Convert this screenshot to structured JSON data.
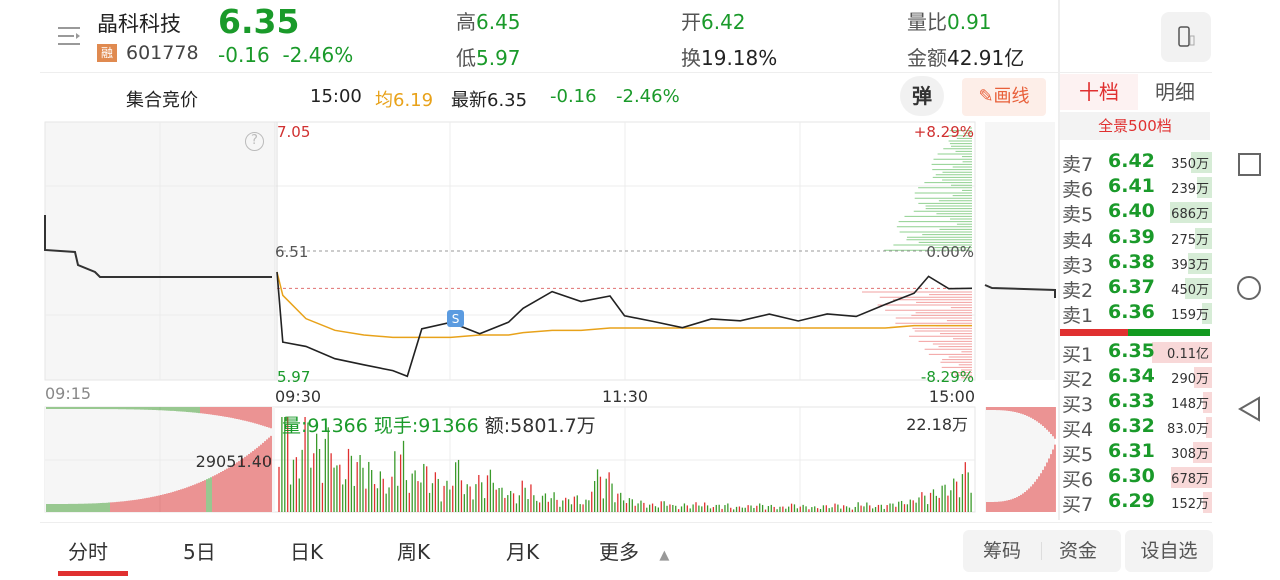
{
  "header": {
    "name": "晶科科技",
    "price": "6.35",
    "rong": "融",
    "code": "601778",
    "change": "-0.16",
    "change_pct": "-2.46%",
    "high_label": "高",
    "high": "6.45",
    "low_label": "低",
    "low": "5.97",
    "open_label": "开",
    "open": "6.42",
    "turnover_label": "换",
    "turnover": "19.18%",
    "vol_ratio_label": "量比",
    "vol_ratio": "0.91",
    "amount_label": "金额",
    "amount": "42.91亿"
  },
  "subbar": {
    "auction": "集合竞价",
    "time": "15:00",
    "avg": "均6.19",
    "latest": "最新6.35",
    "change": "-0.16",
    "change_pct": "-2.46%",
    "danmu": "弹",
    "draw": "画线"
  },
  "orderbook": {
    "tabs": [
      "十档",
      "明细"
    ],
    "panorama": "全景500档",
    "sell": [
      {
        "label": "卖7",
        "price": "6.42",
        "vol": "350万",
        "w": 0.35
      },
      {
        "label": "卖6",
        "price": "6.41",
        "vol": "239万",
        "w": 0.25
      },
      {
        "label": "卖5",
        "price": "6.40",
        "vol": "686万",
        "w": 0.7
      },
      {
        "label": "卖4",
        "price": "6.39",
        "vol": "275万",
        "w": 0.28
      },
      {
        "label": "卖3",
        "price": "6.38",
        "vol": "393万",
        "w": 0.4
      },
      {
        "label": "卖2",
        "price": "6.37",
        "vol": "450万",
        "w": 0.45
      },
      {
        "label": "卖1",
        "price": "6.36",
        "vol": "159万",
        "w": 0.16
      }
    ],
    "buy": [
      {
        "label": "买1",
        "price": "6.35",
        "vol": "0.11亿",
        "w": 1.0
      },
      {
        "label": "买2",
        "price": "6.34",
        "vol": "290万",
        "w": 0.3
      },
      {
        "label": "买3",
        "price": "6.33",
        "vol": "148万",
        "w": 0.15
      },
      {
        "label": "买4",
        "price": "6.32",
        "vol": "83.0万",
        "w": 0.08
      },
      {
        "label": "买5",
        "price": "6.31",
        "vol": "308万",
        "w": 0.31
      },
      {
        "label": "买6",
        "price": "6.30",
        "vol": "678万",
        "w": 0.68
      },
      {
        "label": "买7",
        "price": "6.29",
        "vol": "152万",
        "w": 0.15
      }
    ],
    "buy_sell_ratio": 0.45
  },
  "chart_data": {
    "type": "line",
    "prev_close": 6.51,
    "ylim": [
      5.97,
      7.05
    ],
    "y_labels": {
      "top": "7.05",
      "mid": "6.51",
      "bottom": "5.97",
      "top_pct": "+8.29%",
      "mid_pct": "0.00%",
      "bottom_pct": "-8.29%"
    },
    "x_labels": [
      "09:15",
      "09:30",
      "11:30",
      "15:00"
    ],
    "price_minutes": [
      0,
      2,
      10,
      20,
      30,
      40,
      45,
      50,
      60,
      70,
      80,
      85,
      95,
      105,
      115,
      120,
      130,
      140,
      150,
      160,
      170,
      180,
      190,
      200,
      210,
      220,
      225,
      232,
      240
    ],
    "price": [
      6.42,
      6.12,
      6.1,
      6.05,
      6.02,
      6.0,
      5.97,
      6.18,
      6.2,
      6.16,
      6.2,
      6.27,
      6.33,
      6.3,
      6.31,
      6.24,
      6.2,
      6.19,
      6.21,
      6.22,
      6.23,
      6.22,
      6.23,
      6.24,
      6.27,
      6.34,
      6.39,
      6.36,
      6.35
    ],
    "avg": [
      6.42,
      6.32,
      6.22,
      6.17,
      6.15,
      6.14,
      6.14,
      6.14,
      6.14,
      6.15,
      6.15,
      6.16,
      6.17,
      6.17,
      6.18,
      6.18,
      6.18,
      6.18,
      6.18,
      6.18,
      6.18,
      6.18,
      6.18,
      6.18,
      6.18,
      6.19,
      6.19,
      6.19,
      6.19
    ],
    "marker": "S",
    "volume_info": {
      "vol": "量:91366",
      "hand": "现手:91366",
      "amount": "额:5801.7万",
      "max": "22.18万",
      "auction_max": "29051.40"
    },
    "volume": [
      95,
      40,
      70,
      55,
      60,
      35,
      45,
      40,
      30,
      25,
      50,
      30,
      35,
      28,
      22,
      38,
      20,
      26,
      30,
      18,
      15,
      22,
      12,
      14,
      10,
      12,
      9,
      30,
      28,
      14,
      10,
      8,
      6,
      8,
      5,
      6,
      7,
      5,
      6,
      4,
      5,
      6,
      5,
      4,
      6,
      5,
      4,
      5,
      6,
      4,
      7,
      5,
      6,
      8,
      9,
      14,
      16,
      20,
      24,
      35
    ]
  },
  "tabs": [
    "分时",
    "5日",
    "日K",
    "周K",
    "月K",
    "更多"
  ],
  "buttons": {
    "chips": "筹码",
    "funds": "资金",
    "add": "设自选"
  }
}
